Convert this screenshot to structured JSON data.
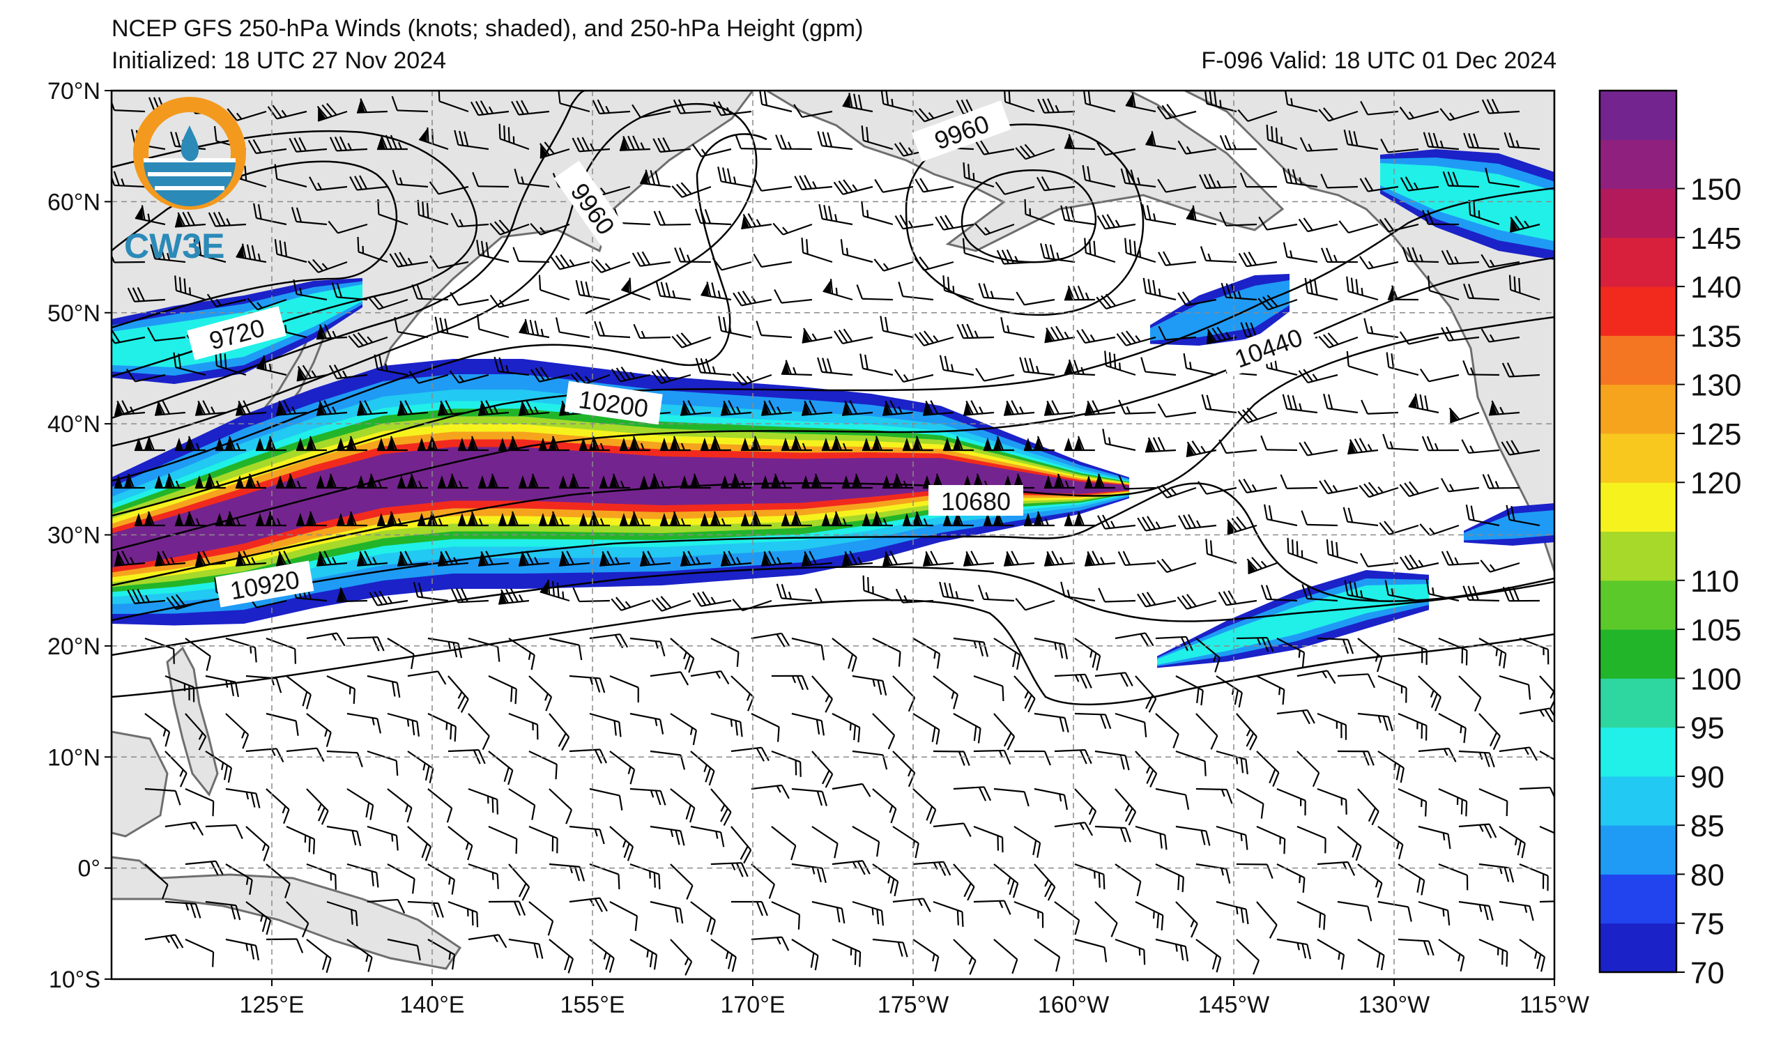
{
  "header": {
    "title": "NCEP GFS 250-hPa Winds (knots; shaded), and 250-hPa Height (gpm)",
    "initialized": "Initialized: 18 UTC 27 Nov 2024",
    "valid": "F-096  Valid: 18 UTC 01 Dec 2024"
  },
  "logo": {
    "text": "CW3E"
  },
  "axes": {
    "lon_labels": [
      "125°E",
      "140°E",
      "155°E",
      "170°E",
      "175°W",
      "160°W",
      "145°W",
      "130°W",
      "115°W"
    ],
    "lat_labels": [
      "70°N",
      "60°N",
      "50°N",
      "40°N",
      "30°N",
      "20°N",
      "10°N",
      "0°",
      "10°S"
    ]
  },
  "colorbar": {
    "labels": [
      "70",
      "75",
      "80",
      "85",
      "90",
      "95",
      "100",
      "105",
      "110",
      "120",
      "125",
      "130",
      "135",
      "140",
      "145",
      "150"
    ],
    "colors": [
      "#1b22c8",
      "#2244ee",
      "#1f9bf5",
      "#22c9f2",
      "#20f0e8",
      "#2ed6a0",
      "#22b52a",
      "#5cc92a",
      "#a6d92a",
      "#f6f21e",
      "#f8c81e",
      "#f6a41e",
      "#f47622",
      "#f22a1e",
      "#d8203c",
      "#b21a5c",
      "#90207e",
      "#74248e"
    ]
  },
  "contours": {
    "labels": [
      "9720",
      "9960",
      "9960",
      "10200",
      "10440",
      "10680",
      "10920"
    ]
  },
  "colors": {
    "land": "#e4e4e4",
    "coast": "#6e6e6e",
    "grid": "#8a8a8a",
    "contour": "#000000"
  }
}
